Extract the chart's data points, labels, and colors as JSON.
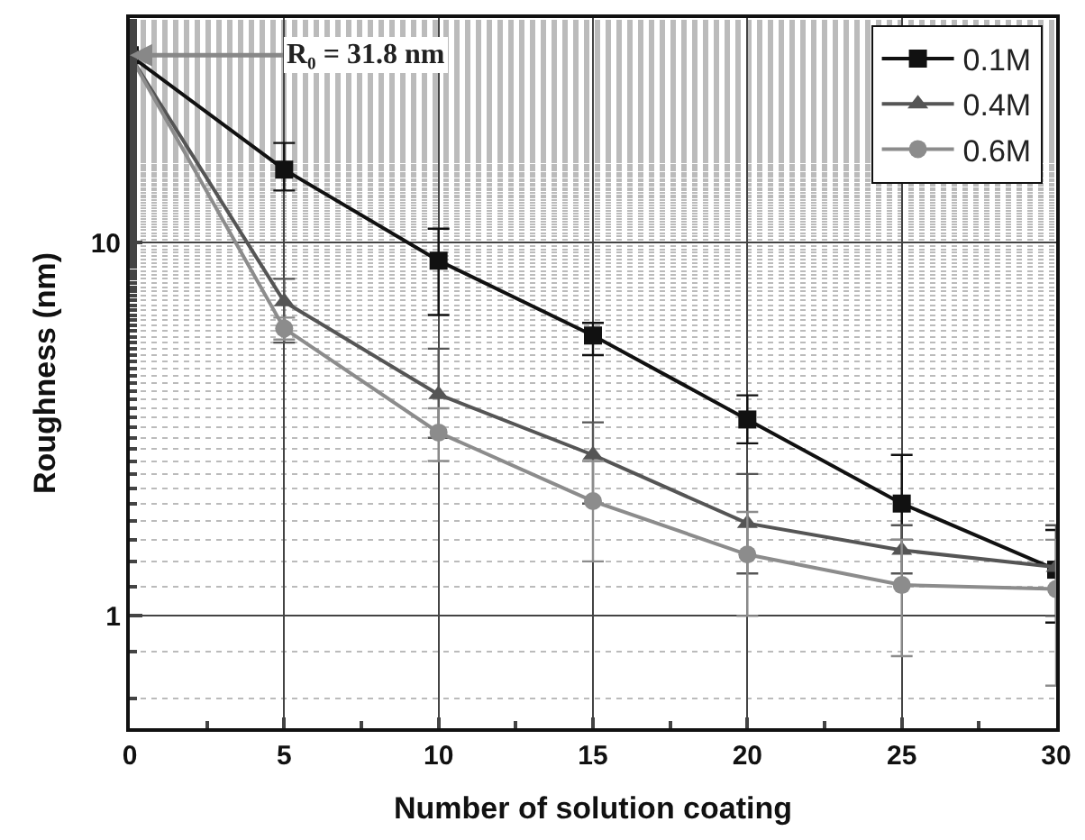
{
  "chart_data": {
    "type": "line",
    "xlabel": "Number of solution coating",
    "ylabel": "Roughness (nm)",
    "x": [
      0,
      5,
      10,
      15,
      20,
      25,
      30
    ],
    "series": [
      {
        "name": "0.1M",
        "color": "#111111",
        "marker": "square",
        "values": [
          31.8,
          15.7,
          8.95,
          5.64,
          3.36,
          2.0,
          1.33
        ],
        "errors": [
          null,
          [
            13.8,
            18.5
          ],
          [
            6.4,
            10.9
          ],
          [
            5.0,
            6.1
          ],
          [
            2.9,
            3.9
          ],
          [
            1.6,
            2.7
          ],
          [
            0.96,
            1.7
          ]
        ]
      },
      {
        "name": "0.4M",
        "color": "#555555",
        "marker": "triangle",
        "values": [
          31.8,
          6.95,
          3.92,
          2.7,
          1.77,
          1.5,
          1.35
        ],
        "errors": [
          null,
          [
            5.4,
            8.0
          ],
          [
            3.0,
            5.2
          ],
          [
            2.0,
            3.3
          ],
          [
            1.3,
            2.4
          ],
          [
            1.3,
            1.75
          ],
          [
            1.0,
            1.75
          ]
        ]
      },
      {
        "name": "0.6M",
        "color": "#8c8c8c",
        "marker": "circle",
        "values": [
          31.8,
          5.89,
          3.1,
          2.03,
          1.46,
          1.21,
          1.18
        ],
        "errors": [
          null,
          [
            5.5,
            6.3
          ],
          [
            2.6,
            3.6
          ],
          [
            1.4,
            2.6
          ],
          [
            1.0,
            1.9
          ],
          [
            0.78,
            1.6
          ],
          [
            0.65,
            1.6
          ]
        ]
      }
    ],
    "annotations": [
      {
        "text": "R₀ = 31.8 nm",
        "x": 0,
        "y": 31.8
      }
    ],
    "xlim": [
      0,
      30
    ],
    "xticks": [
      0,
      5,
      10,
      15,
      20,
      25,
      30
    ],
    "ylim": [
      0.5,
      40
    ],
    "yticks": [
      1,
      10
    ],
    "log": "y",
    "grid": true,
    "legend": "top right",
    "line_style": "solid"
  }
}
